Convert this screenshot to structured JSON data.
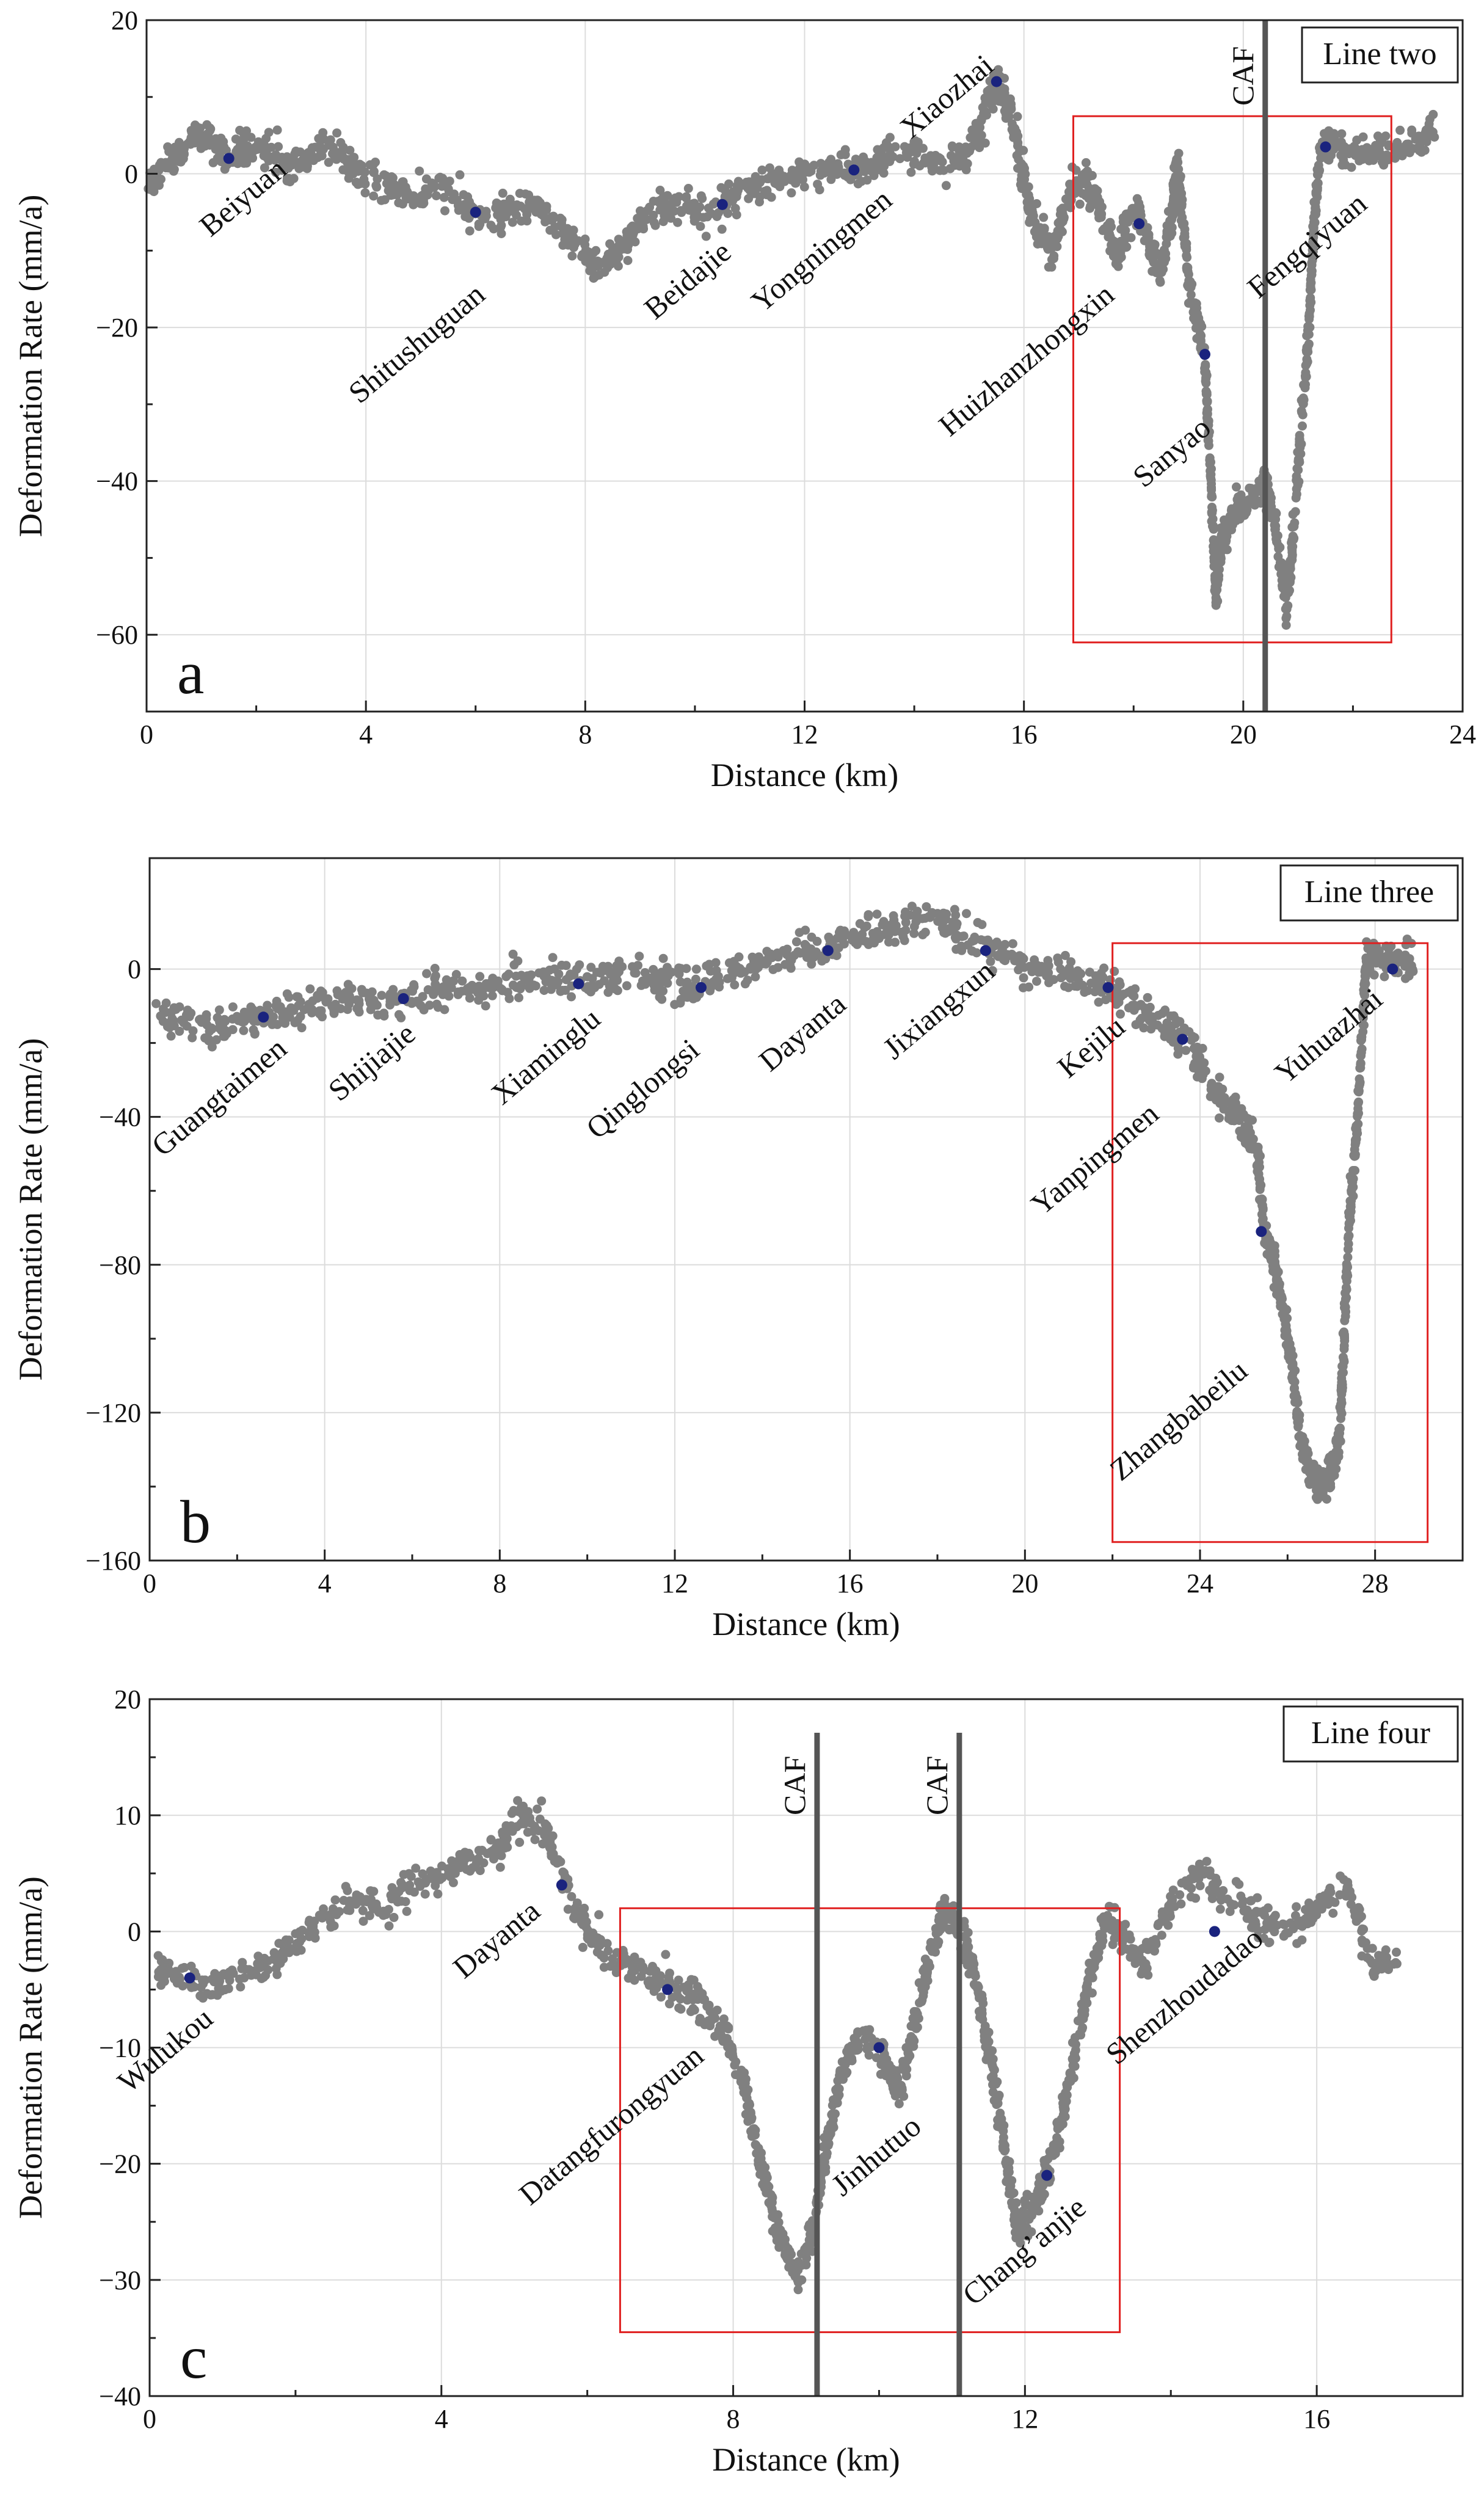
{
  "figure": {
    "panels": [
      "a",
      "b",
      "c"
    ]
  },
  "chart_data": [
    {
      "type": "scatter",
      "panel_letter": "a",
      "legend": "Line two",
      "xlabel": "Distance (km)",
      "ylabel": "Deformation Rate (mm/a)",
      "xlim": [
        0,
        24
      ],
      "ylim": [
        -70,
        20
      ],
      "xticks": [
        0,
        4,
        8,
        12,
        16,
        20,
        24
      ],
      "yticks": [
        20,
        0,
        -20,
        -40,
        -60
      ],
      "grid": true,
      "stations": [
        {
          "name": "Beiyuan",
          "x": 1.5,
          "y": 2
        },
        {
          "name": "Shitushuguan",
          "x": 6.0,
          "y": -5
        },
        {
          "name": "Beidajie",
          "x": 10.5,
          "y": -4
        },
        {
          "name": "Yongningmen",
          "x": 12.9,
          "y": 0.5
        },
        {
          "name": "Xiaozhai",
          "x": 15.5,
          "y": 12
        },
        {
          "name": "Huizhanzhongxin",
          "x": 18.1,
          "y": -6.5
        },
        {
          "name": "Sanyao",
          "x": 19.3,
          "y": -23.5
        },
        {
          "name": "Fengqiyuan",
          "x": 21.5,
          "y": 3.5
        }
      ],
      "highlight_box": {
        "x": [
          16.9,
          22.7
        ],
        "y": [
          -61,
          7.5
        ]
      },
      "caf_lines": [
        {
          "label": "CAF",
          "x": 20.4
        }
      ],
      "profile": [
        [
          0.0,
          -2
        ],
        [
          0.3,
          1
        ],
        [
          0.6,
          3
        ],
        [
          0.9,
          5
        ],
        [
          1.2,
          4
        ],
        [
          1.5,
          2
        ],
        [
          1.8,
          4
        ],
        [
          2.2,
          3
        ],
        [
          2.6,
          0
        ],
        [
          3.0,
          2
        ],
        [
          3.4,
          4
        ],
        [
          3.8,
          1
        ],
        [
          4.2,
          -1
        ],
        [
          4.6,
          -2
        ],
        [
          5.0,
          -3
        ],
        [
          5.4,
          -2
        ],
        [
          5.8,
          -4
        ],
        [
          6.2,
          -6
        ],
        [
          6.6,
          -5
        ],
        [
          7.0,
          -4
        ],
        [
          7.4,
          -6
        ],
        [
          7.8,
          -9
        ],
        [
          8.2,
          -12
        ],
        [
          8.6,
          -10
        ],
        [
          9.0,
          -6
        ],
        [
          9.4,
          -4
        ],
        [
          9.8,
          -4
        ],
        [
          10.2,
          -5
        ],
        [
          10.6,
          -4
        ],
        [
          11.0,
          -2
        ],
        [
          11.4,
          -1
        ],
        [
          11.8,
          0
        ],
        [
          12.2,
          0
        ],
        [
          12.6,
          1
        ],
        [
          13.0,
          0
        ],
        [
          13.4,
          2
        ],
        [
          13.8,
          3
        ],
        [
          14.2,
          2
        ],
        [
          14.6,
          1
        ],
        [
          15.0,
          3
        ],
        [
          15.3,
          8
        ],
        [
          15.5,
          12
        ],
        [
          15.7,
          9
        ],
        [
          15.9,
          3
        ],
        [
          16.1,
          -4
        ],
        [
          16.3,
          -8
        ],
        [
          16.5,
          -10
        ],
        [
          16.7,
          -6
        ],
        [
          16.9,
          -2
        ],
        [
          17.1,
          -1
        ],
        [
          17.3,
          -3
        ],
        [
          17.5,
          -7
        ],
        [
          17.7,
          -11
        ],
        [
          17.9,
          -6
        ],
        [
          18.1,
          -5
        ],
        [
          18.3,
          -10
        ],
        [
          18.5,
          -13
        ],
        [
          18.7,
          -5
        ],
        [
          18.8,
          2
        ],
        [
          19.0,
          -14
        ],
        [
          19.2,
          -20
        ],
        [
          19.3,
          -24
        ],
        [
          19.4,
          -38
        ],
        [
          19.5,
          -55
        ],
        [
          19.6,
          -48
        ],
        [
          19.8,
          -44
        ],
        [
          20.0,
          -43
        ],
        [
          20.2,
          -42
        ],
        [
          20.4,
          -40
        ],
        [
          20.6,
          -47
        ],
        [
          20.8,
          -57
        ],
        [
          21.0,
          -38
        ],
        [
          21.2,
          -20
        ],
        [
          21.3,
          -5
        ],
        [
          21.4,
          3
        ],
        [
          21.6,
          4
        ],
        [
          22.0,
          3
        ],
        [
          22.4,
          3
        ],
        [
          22.8,
          3
        ],
        [
          23.2,
          4
        ],
        [
          23.5,
          6
        ]
      ]
    },
    {
      "type": "scatter",
      "panel_letter": "b",
      "legend": "Line three",
      "xlabel": "Distance (km)",
      "ylabel": "Deformation Rate (mm/a)",
      "xlim": [
        0,
        30
      ],
      "ylim": [
        -160,
        30
      ],
      "xticks": [
        0,
        4,
        8,
        12,
        16,
        20,
        24,
        28
      ],
      "yticks": [
        0,
        -40,
        -80,
        -120,
        -160
      ],
      "grid": true,
      "stations": [
        {
          "name": "Guangtaimen",
          "x": 2.6,
          "y": -13
        },
        {
          "name": "Shijiajie",
          "x": 5.8,
          "y": -8
        },
        {
          "name": "Xiaminglu",
          "x": 9.8,
          "y": -4
        },
        {
          "name": "Qinglongsi",
          "x": 12.6,
          "y": -5
        },
        {
          "name": "Dayanta",
          "x": 15.5,
          "y": 5
        },
        {
          "name": "Jixiangxun",
          "x": 19.1,
          "y": 5
        },
        {
          "name": "Kejilu",
          "x": 21.9,
          "y": -5
        },
        {
          "name": "Yanpingmen",
          "x": 23.6,
          "y": -19
        },
        {
          "name": "Zhangbabeilu",
          "x": 25.4,
          "y": -71
        },
        {
          "name": "Yuhuazhai",
          "x": 28.4,
          "y": 0
        }
      ],
      "highlight_box": {
        "x": [
          22.0,
          29.2
        ],
        "y": [
          -155,
          7
        ]
      },
      "caf_lines": [],
      "profile": [
        [
          0.2,
          -12
        ],
        [
          0.8,
          -14
        ],
        [
          1.4,
          -16
        ],
        [
          2.0,
          -14
        ],
        [
          2.6,
          -13
        ],
        [
          3.2,
          -11
        ],
        [
          3.8,
          -10
        ],
        [
          4.4,
          -8
        ],
        [
          5.0,
          -9
        ],
        [
          5.6,
          -7
        ],
        [
          6.2,
          -7
        ],
        [
          6.8,
          -5
        ],
        [
          7.4,
          -6
        ],
        [
          8.0,
          -3
        ],
        [
          8.6,
          -4
        ],
        [
          9.2,
          -2
        ],
        [
          9.8,
          -3
        ],
        [
          10.4,
          -1
        ],
        [
          11.0,
          0
        ],
        [
          11.6,
          -3
        ],
        [
          12.2,
          -6
        ],
        [
          12.8,
          -3
        ],
        [
          13.4,
          0
        ],
        [
          14.0,
          2
        ],
        [
          14.6,
          3
        ],
        [
          15.2,
          5
        ],
        [
          15.8,
          7
        ],
        [
          16.4,
          9
        ],
        [
          17.0,
          11
        ],
        [
          17.6,
          13
        ],
        [
          18.2,
          12
        ],
        [
          18.8,
          8
        ],
        [
          19.4,
          5
        ],
        [
          20.0,
          1
        ],
        [
          20.6,
          -1
        ],
        [
          21.2,
          -3
        ],
        [
          21.8,
          -5
        ],
        [
          22.3,
          -8
        ],
        [
          22.8,
          -12
        ],
        [
          23.3,
          -16
        ],
        [
          23.8,
          -21
        ],
        [
          24.2,
          -30
        ],
        [
          24.6,
          -37
        ],
        [
          25.0,
          -42
        ],
        [
          25.3,
          -50
        ],
        [
          25.5,
          -72
        ],
        [
          25.7,
          -80
        ],
        [
          25.9,
          -92
        ],
        [
          26.1,
          -106
        ],
        [
          26.3,
          -128
        ],
        [
          26.5,
          -136
        ],
        [
          26.7,
          -140
        ],
        [
          26.9,
          -138
        ],
        [
          27.1,
          -132
        ],
        [
          27.2,
          -125
        ],
        [
          27.4,
          -70
        ],
        [
          27.6,
          -40
        ],
        [
          27.8,
          3
        ],
        [
          28.0,
          3
        ],
        [
          28.3,
          2
        ],
        [
          28.6,
          2
        ],
        [
          28.9,
          1
        ]
      ]
    },
    {
      "type": "scatter",
      "panel_letter": "c",
      "legend": "Line four",
      "xlabel": "Distance (km)",
      "ylabel": "Deformation Rate (mm/a)",
      "xlim": [
        0,
        18
      ],
      "ylim": [
        -40,
        20
      ],
      "xticks": [
        0,
        4,
        8,
        12,
        16
      ],
      "yticks": [
        20,
        10,
        0,
        -10,
        -20,
        -30,
        -40
      ],
      "grid": true,
      "stations": [
        {
          "name": "Wulukou",
          "x": 0.55,
          "y": -4
        },
        {
          "name": "Dayanta",
          "x": 5.65,
          "y": 4
        },
        {
          "name": "Datangfurongyuan",
          "x": 7.1,
          "y": -5
        },
        {
          "name": "Jinhutuo",
          "x": 10.0,
          "y": -10
        },
        {
          "name": "Chang’anjie",
          "x": 12.3,
          "y": -21
        },
        {
          "name": "Shenzhoudadao",
          "x": 14.6,
          "y": 0
        }
      ],
      "highlight_box": {
        "x": [
          6.45,
          13.3
        ],
        "y": [
          -34.5,
          2
        ]
      },
      "caf_lines": [
        {
          "label": "CAF",
          "x": 9.15
        },
        {
          "label": "CAF",
          "x": 11.1
        }
      ],
      "profile": [
        [
          0.1,
          -3
        ],
        [
          0.4,
          -4
        ],
        [
          0.8,
          -5
        ],
        [
          1.2,
          -4
        ],
        [
          1.6,
          -3
        ],
        [
          2.0,
          -1
        ],
        [
          2.4,
          1
        ],
        [
          2.8,
          3
        ],
        [
          3.2,
          2
        ],
        [
          3.6,
          4
        ],
        [
          4.0,
          5
        ],
        [
          4.4,
          6
        ],
        [
          4.8,
          7
        ],
        [
          5.1,
          10
        ],
        [
          5.4,
          9
        ],
        [
          5.7,
          4
        ],
        [
          6.0,
          0
        ],
        [
          6.3,
          -2
        ],
        [
          6.6,
          -3
        ],
        [
          6.9,
          -4
        ],
        [
          7.2,
          -5
        ],
        [
          7.5,
          -6
        ],
        [
          7.8,
          -8
        ],
        [
          8.1,
          -12
        ],
        [
          8.3,
          -18
        ],
        [
          8.5,
          -23
        ],
        [
          8.7,
          -27
        ],
        [
          8.9,
          -30
        ],
        [
          9.1,
          -25
        ],
        [
          9.3,
          -18
        ],
        [
          9.5,
          -12
        ],
        [
          9.7,
          -9
        ],
        [
          10.0,
          -10
        ],
        [
          10.3,
          -14
        ],
        [
          10.5,
          -8
        ],
        [
          10.7,
          -2
        ],
        [
          10.9,
          2
        ],
        [
          11.1,
          0
        ],
        [
          11.3,
          -3
        ],
        [
          11.5,
          -10
        ],
        [
          11.7,
          -18
        ],
        [
          11.9,
          -26
        ],
        [
          12.1,
          -24
        ],
        [
          12.3,
          -21
        ],
        [
          12.5,
          -16
        ],
        [
          12.7,
          -10
        ],
        [
          12.9,
          -4
        ],
        [
          13.1,
          1
        ],
        [
          13.3,
          0
        ],
        [
          13.6,
          -3
        ],
        [
          14.0,
          2
        ],
        [
          14.4,
          5
        ],
        [
          14.8,
          3
        ],
        [
          15.2,
          1
        ],
        [
          15.6,
          0
        ],
        [
          16.0,
          2
        ],
        [
          16.4,
          4
        ],
        [
          16.8,
          -3
        ],
        [
          17.1,
          -2
        ]
      ]
    }
  ]
}
